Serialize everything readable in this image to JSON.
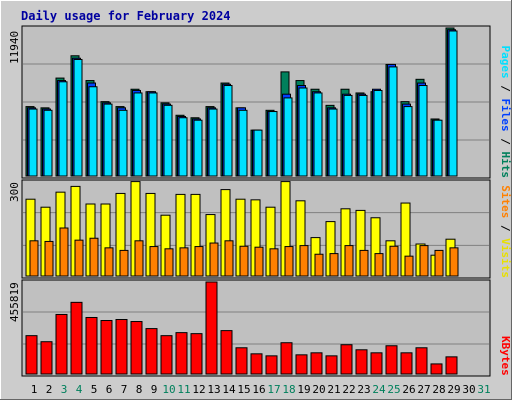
{
  "chart_data": [
    {
      "panel": "pages-files-hits",
      "type": "bar",
      "title": "Daily usage for February 2024",
      "y_max_label": "11940",
      "ylim": [
        0,
        11940
      ],
      "categories": [
        "1",
        "2",
        "3",
        "4",
        "5",
        "6",
        "7",
        "8",
        "9",
        "10",
        "11",
        "12",
        "13",
        "14",
        "15",
        "16",
        "17",
        "18",
        "19",
        "20",
        "21",
        "22",
        "23",
        "24",
        "25",
        "26",
        "27",
        "28",
        "29",
        "30",
        "31"
      ],
      "weekend_days": [
        "3",
        "4",
        "10",
        "11",
        "17",
        "18",
        "24",
        "25",
        "31"
      ],
      "legend": {
        "pages": "Pages",
        "files": "Files",
        "hits": "Hits",
        "sep": " / "
      },
      "colors": {
        "hits": "#00805c",
        "files": "#0040ff",
        "pages": "#00e0ff"
      },
      "series": [
        {
          "name": "Hits",
          "values": [
            5600,
            5500,
            7900,
            9700,
            7700,
            6000,
            5600,
            7000,
            6800,
            5900,
            4900,
            4700,
            5600,
            7500,
            5500,
            3700,
            5300,
            8400,
            7700,
            7000,
            5700,
            7000,
            6700,
            6800,
            9000,
            6000,
            7800,
            4600,
            11940,
            null,
            null
          ]
        },
        {
          "name": "Files",
          "values": [
            5500,
            5400,
            7700,
            9500,
            7500,
            5900,
            5500,
            6900,
            6800,
            5800,
            4800,
            4600,
            5500,
            7400,
            5500,
            3700,
            5200,
            6600,
            7300,
            6800,
            5500,
            6600,
            6600,
            7000,
            9000,
            5800,
            7500,
            4500,
            11800,
            null,
            null
          ]
        },
        {
          "name": "Pages",
          "values": [
            5400,
            5300,
            7600,
            9400,
            7200,
            5800,
            5300,
            6700,
            6700,
            5700,
            4700,
            4500,
            5400,
            7300,
            5300,
            3700,
            5200,
            6300,
            7100,
            6700,
            5400,
            6500,
            6500,
            6900,
            8800,
            5600,
            7300,
            4500,
            11700,
            null,
            null
          ]
        }
      ]
    },
    {
      "panel": "visits-sites",
      "type": "bar",
      "y_max_label": "300",
      "ylim": [
        0,
        300
      ],
      "legend": {
        "sites": "Sites",
        "visits": "Visits",
        "sep": " / "
      },
      "colors": {
        "visits": "#ffff00",
        "sites": "#ff8000"
      },
      "series": [
        {
          "name": "Visits",
          "values": [
            240,
            215,
            262,
            280,
            225,
            225,
            258,
            295,
            258,
            190,
            255,
            255,
            192,
            270,
            240,
            238,
            215,
            295,
            235,
            120,
            170,
            210,
            205,
            182,
            110,
            228,
            100,
            65,
            115,
            null,
            null
          ]
        },
        {
          "name": "Sites",
          "values": [
            110,
            108,
            150,
            112,
            118,
            88,
            80,
            110,
            92,
            85,
            88,
            92,
            103,
            110,
            93,
            90,
            85,
            92,
            95,
            68,
            70,
            95,
            80,
            70,
            93,
            62,
            95,
            80,
            88,
            null,
            null
          ]
        }
      ]
    },
    {
      "panel": "kbytes",
      "type": "bar",
      "y_max_label": "455819",
      "ylim": [
        0,
        455819
      ],
      "legend": {
        "kbytes": "KBytes"
      },
      "colors": {
        "kbytes": "#ff0000"
      },
      "series": [
        {
          "name": "KBytes",
          "values": [
            190000,
            160000,
            295000,
            355000,
            280000,
            265000,
            270000,
            260000,
            225000,
            190000,
            205000,
            200000,
            455819,
            215000,
            130000,
            100000,
            90000,
            155000,
            95000,
            105000,
            90000,
            145000,
            120000,
            105000,
            140000,
            105000,
            130000,
            50000,
            85000,
            null,
            null
          ]
        }
      ]
    }
  ]
}
